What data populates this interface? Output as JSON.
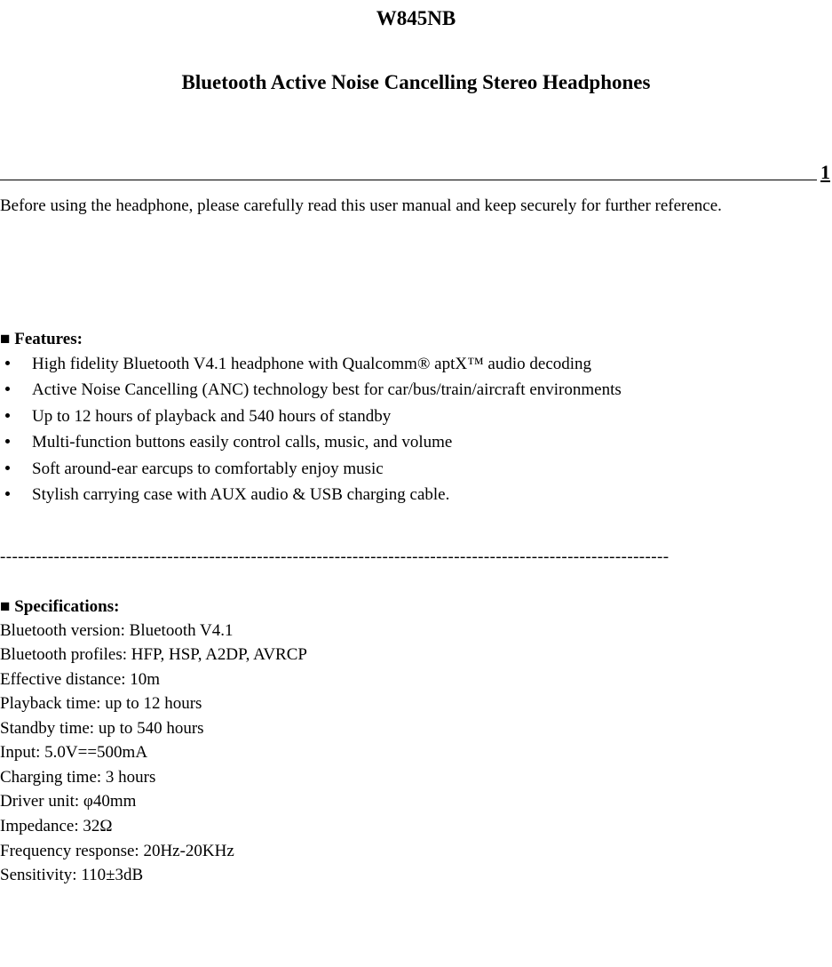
{
  "header": {
    "model": "W845NB",
    "product_title": "Bluetooth Active Noise Cancelling Stereo Headphones",
    "page_number": "1",
    "intro_text": "Before using the headphone, please carefully read this user manual and keep securely for further reference."
  },
  "features": {
    "heading_label": "Features:",
    "items": [
      "High fidelity Bluetooth V4.1 headphone with Qualcomm® aptX™ audio decoding",
      "Active Noise Cancelling (ANC) technology best for car/bus/train/aircraft environments",
      "Up to 12 hours of playback and 540 hours of standby",
      "Multi-function buttons easily control calls, music, and volume",
      "Soft around-ear earcups to comfortably enjoy music",
      "Stylish carrying case with AUX audio & USB charging cable."
    ]
  },
  "separator": "----------------------------------------------------------------------------------------------------------------",
  "specifications": {
    "heading_label": "Specifications:",
    "lines": [
      "Bluetooth version: Bluetooth V4.1",
      "Bluetooth profiles: HFP, HSP, A2DP, AVRCP",
      "Effective distance: 10m",
      "Playback time: up to 12 hours",
      "Standby time: up to 540 hours",
      "Input: 5.0V==500mA",
      "Charging time: 3 hours",
      "Driver unit: φ40mm",
      "Impedance: 32Ω",
      "Frequency response: 20Hz-20KHz",
      "Sensitivity: 110±3dB"
    ]
  },
  "style": {
    "text_color": "#000000",
    "background_color": "#ffffff",
    "font_family": "Times New Roman",
    "title_fontsize": 23,
    "body_fontsize": 19,
    "bullet_marker": "solid-black-square"
  }
}
